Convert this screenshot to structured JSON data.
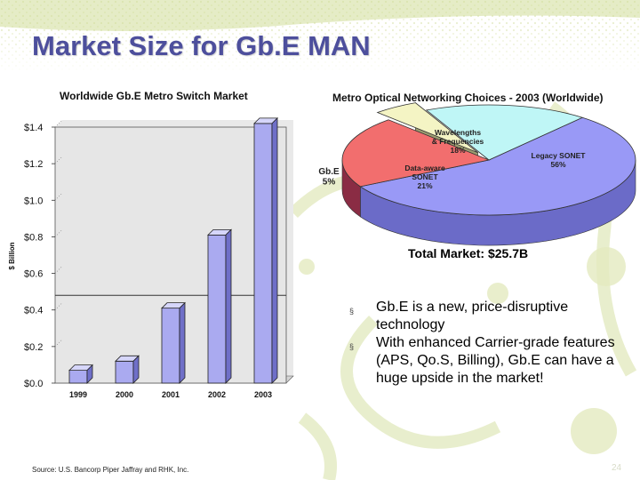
{
  "title": "Market Size for Gb.E MAN",
  "colors": {
    "title": "#4d4f9c",
    "bar_fill": "#aaaaf0",
    "bar_top": "#d6d6fa",
    "bar_side": "#6f6fc8",
    "legacy_sonet": "#9999f6",
    "data_aware_sonet": "#f26e6e",
    "wavelengths": "#bff6f6",
    "gbe": "#f4f4c4",
    "pie_depth": "#8a2c44",
    "decor_green": "#c9d78c"
  },
  "chart_data": [
    {
      "type": "bar",
      "title": "Worldwide Gb.E Metro Switch Market",
      "ylabel": "$ Billion",
      "categories": [
        "1999",
        "2000",
        "2001",
        "2002",
        "2003"
      ],
      "values": [
        0.07,
        0.12,
        0.41,
        0.81,
        1.42
      ],
      "ylim": [
        0,
        1.4
      ],
      "yticks": [
        0.0,
        0.2,
        0.4,
        0.6,
        0.8,
        1.0,
        1.2,
        1.4
      ],
      "ytick_labels": [
        "$0.0",
        "$0.2",
        "$0.4",
        "$0.6",
        "$0.8",
        "$1.0",
        "$1.2",
        "$1.4"
      ],
      "reference_line": 0.48,
      "grid": false
    },
    {
      "type": "pie",
      "title": "Metro Optical Networking Choices - 2003 (Worldwide)",
      "slices": [
        {
          "label": "Legacy SONET",
          "value": 56,
          "value_label": "56%"
        },
        {
          "label": "Data-aware SONET",
          "value": 21,
          "value_label": "21%"
        },
        {
          "label": "Gb.E",
          "value": 5,
          "value_label": "5%"
        },
        {
          "label": "Wavelengths & Frequencies",
          "value": 18,
          "value_label": "18%"
        }
      ],
      "total_label": "Total Market: $25.7B"
    }
  ],
  "bullets": [
    "Gb.E is a new, price-disruptive technology",
    "With enhanced Carrier-grade features (APS, Qo.S, Billing), Gb.E can have a huge upside in the market!"
  ],
  "bullet_glyph": "§",
  "source": "Source: U.S. Bancorp Piper Jaffray and RHK, Inc.",
  "slide_number": "24"
}
